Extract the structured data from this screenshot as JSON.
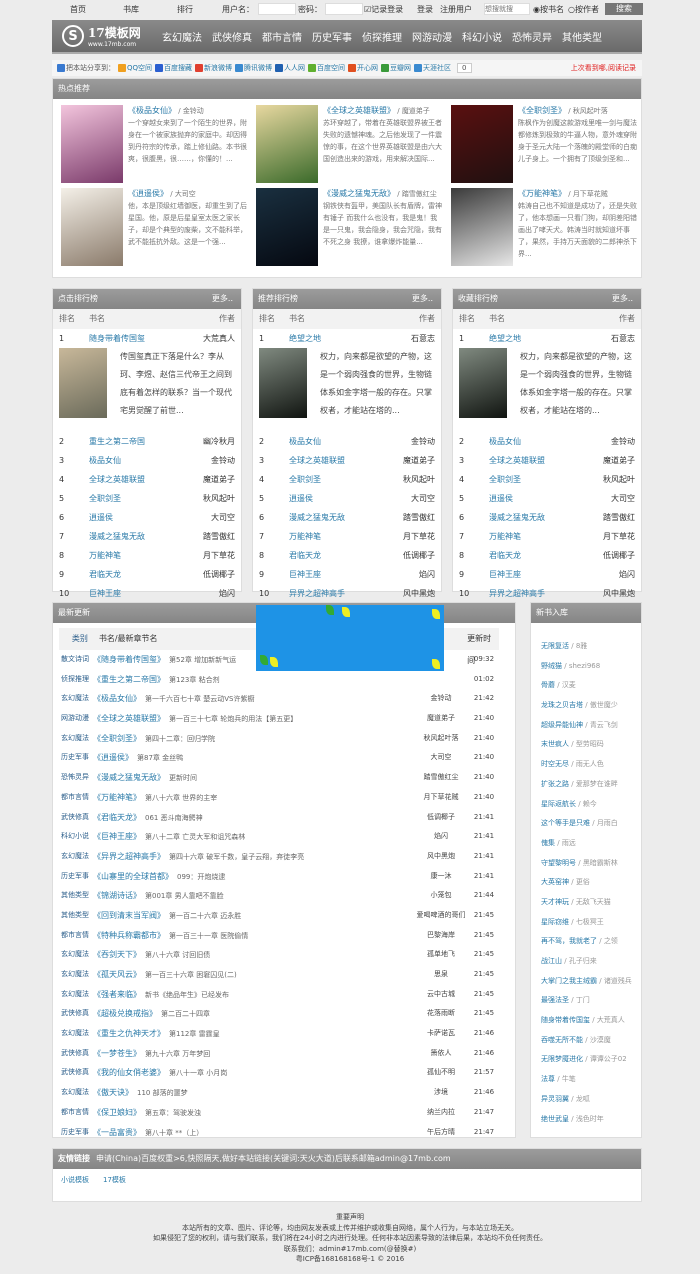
{
  "topbar": {
    "home": "首页",
    "library": "书库",
    "rank": "排行",
    "username_label": "用户名：",
    "password_label": "密码：",
    "remember": "记录登录",
    "login": "登录",
    "register": "注册用户",
    "search_placeholder": "想搜就搜",
    "by_name": "按书名",
    "by_author": "按作者",
    "search": "搜索"
  },
  "header": {
    "logo_name": "17模板网",
    "logo_url": "www.17mb.com",
    "nav": [
      "玄幻魔法",
      "武侠修真",
      "都市言情",
      "历史军事",
      "侦探推理",
      "网游动漫",
      "科幻小说",
      "恐怖灵异",
      "其他类型"
    ]
  },
  "share": {
    "label": "把本站分享到：",
    "sites": [
      {
        "name": "QQ空间",
        "color": "#f0a020"
      },
      {
        "name": "百度搜藏",
        "color": "#2b5fd0"
      },
      {
        "name": "新浪微博",
        "color": "#e04030"
      },
      {
        "name": "腾讯微博",
        "color": "#3a8ad0"
      },
      {
        "name": "人人网",
        "color": "#2060b0"
      },
      {
        "name": "百度空间",
        "color": "#60b030"
      },
      {
        "name": "开心网",
        "color": "#e05020"
      },
      {
        "name": "豆瓣网",
        "color": "#3a9a3a"
      },
      {
        "name": "天涯社区",
        "color": "#3a8ad0"
      }
    ],
    "count": "0",
    "history": "上次看到哪,阅读记录"
  },
  "hot": {
    "title": "热点推荐",
    "items": [
      {
        "title": "《极品女仙》",
        "author": "金铃动",
        "desc": "一个穿越女来到了一个陌生的世界，附身在一个被家族抛弃的家庭中。却因得到丹符宗的传承，踏上修仙路。本书很爽，很腹黑，很……，你懂的！...",
        "cover": [
          "#f3c5dd",
          "#7a3a6a"
        ]
      },
      {
        "title": "《全球之英雄联盟》",
        "author": "魔道弟子",
        "desc": "苏环穿越了，带着在英雄联盟界被王者失败的遗憾神魂。之后他发现了一件震惊的事，在这个世界英雄联盟是由六大国创造出来的游戏，用来解决国际...",
        "cover": [
          "#e8d8a0",
          "#3a6a2a"
        ]
      },
      {
        "title": "《全职剑圣》",
        "author": "秋风起叶落",
        "desc": "陈枫作为创魔这款游戏里唯一剑与魔法都修炼到极致的牛逼人物，意外魂穿附身于圣元大陆一个落魄的殿堂师的白痴儿子身上。一个拥有了顶级剑圣和...",
        "cover": [
          "#5a1010",
          "#201010"
        ]
      },
      {
        "title": "《逍遥侯》",
        "author": "大司空",
        "desc": "他，本是顶级红墙御医，却重生到了后星国。他，原是后星皇室太医之家长子，却是个典型的废柴，文不能科举，武不能抵抗外敌。这是一个强...",
        "cover": [
          "#f4f0e8",
          "#8a7a6a"
        ]
      },
      {
        "title": "《漫威之猛鬼无敌》",
        "author": "踏雪傲红尘",
        "desc": "钢铁侠有盔甲，美国队长有盾牌，雷神有锤子 而我什么也没有，我是鬼！我是一只鬼，我会隐身，我会咒隐，我有不死之身 我撩，谁拿爆炸能量...",
        "cover": [
          "#1a3040",
          "#050810"
        ]
      },
      {
        "title": "《万能神笔》",
        "author": "月下草花贼",
        "desc": "韩涛自己也不知道是成功了，还是失败了，他本想画一只看门狗，却阴差阳错画出了哮天犬。韩涛当时就知道坏事了，果然，手持万天面貌的二郎神杀下界...",
        "cover": [
          "#3a3a3a",
          "#e8e8e8"
        ]
      }
    ]
  },
  "rankings": [
    {
      "title": "点击排行榜",
      "more": "更多..",
      "headers": [
        "排名",
        "书名",
        "作者"
      ],
      "top_desc": "传国玺真正下落是什么？李从珂、李煜、赵信三代帝王之间到底有着怎样的联系？当一个现代宅男觉醒了前世...",
      "top_cover": [
        "#c8b89a",
        "#6a6a5a"
      ],
      "rows": [
        [
          "1",
          "随身带着传国玺",
          "大荒真人"
        ],
        [
          "2",
          "重生之第二帝国",
          "幽冷秋月"
        ],
        [
          "3",
          "极品女仙",
          "金铃动"
        ],
        [
          "4",
          "全球之英雄联盟",
          "魔道弟子"
        ],
        [
          "5",
          "全职剑圣",
          "秋风起叶"
        ],
        [
          "6",
          "逍遥侯",
          "大司空"
        ],
        [
          "7",
          "漫威之猛鬼无敌",
          "踏雪傲红"
        ],
        [
          "8",
          "万能神笔",
          "月下草花"
        ],
        [
          "9",
          "君临天龙",
          "低调椰子"
        ],
        [
          "10",
          "巨神王座",
          "焰闪"
        ]
      ]
    },
    {
      "title": "推荐排行榜",
      "more": "更多..",
      "headers": [
        "排名",
        "书名",
        "作者"
      ],
      "top_desc": "权力，向来都是欲望的产物，这是一个弱肉强食的世界，生物链体系如金字塔一般的存在。只掌权者，才能站在塔的...",
      "top_cover": [
        "#808a80",
        "#101410"
      ],
      "rows": [
        [
          "1",
          "绝望之地",
          "石意志"
        ],
        [
          "2",
          "极品女仙",
          "金铃动"
        ],
        [
          "3",
          "全球之英雄联盟",
          "魔道弟子"
        ],
        [
          "4",
          "全职剑圣",
          "秋风起叶"
        ],
        [
          "5",
          "逍遥侯",
          "大司空"
        ],
        [
          "6",
          "漫威之猛鬼无敌",
          "踏雪傲红"
        ],
        [
          "7",
          "万能神笔",
          "月下草花"
        ],
        [
          "8",
          "君临天龙",
          "低调椰子"
        ],
        [
          "9",
          "巨神王座",
          "焰闪"
        ],
        [
          "10",
          "异界之超神高手",
          "风中黑炮"
        ]
      ]
    },
    {
      "title": "收藏排行榜",
      "more": "更多..",
      "headers": [
        "排名",
        "书名",
        "作者"
      ],
      "top_desc": "权力，向来都是欲望的产物，这是一个弱肉强食的世界，生物链体系如金字塔一般的存在。只掌权者，才能站在塔的...",
      "top_cover": [
        "#808a80",
        "#101410"
      ],
      "rows": [
        [
          "1",
          "绝望之地",
          "石意志"
        ],
        [
          "2",
          "极品女仙",
          "金铃动"
        ],
        [
          "3",
          "全球之英雄联盟",
          "魔道弟子"
        ],
        [
          "4",
          "全职剑圣",
          "秋风起叶"
        ],
        [
          "5",
          "逍遥侯",
          "大司空"
        ],
        [
          "6",
          "漫威之猛鬼无敌",
          "踏雪傲红"
        ],
        [
          "7",
          "万能神笔",
          "月下草花"
        ],
        [
          "8",
          "君临天龙",
          "低调椰子"
        ],
        [
          "9",
          "巨神王座",
          "焰闪"
        ],
        [
          "10",
          "异界之超神高手",
          "风中黑炮"
        ]
      ]
    }
  ],
  "updates": {
    "title": "最新更新",
    "headers": [
      "类别",
      "书名/最新章节名",
      "更新时间"
    ],
    "rows": [
      [
        "散文诗词",
        "《随身带着传国玺》",
        "第52章 增加新新气运",
        "",
        "09:32"
      ],
      [
        "侦探推理",
        "《重生之第二帝国》",
        "第123章 粘合剂",
        "",
        "01:02"
      ],
      [
        "玄幻魔法",
        "《极品女仙》",
        "第一千六百七十章 楚云动VS许紫橱",
        "金铃动",
        "21:42"
      ],
      [
        "网游动漫",
        "《全球之英雄联盟》",
        "第一百三十七章 轮炮兵的用法【第五更】",
        "魔道弟子",
        "21:40"
      ],
      [
        "玄幻魔法",
        "《全职剑圣》",
        "第四十二章：回归学院",
        "秋风起叶落",
        "21:40"
      ],
      [
        "历史军事",
        "《逍遥侯》",
        "第87章 金丝鸭",
        "大司空",
        "21:40"
      ],
      [
        "恐怖灵异",
        "《漫威之猛鬼无敌》",
        "更新时间",
        "踏雪傲红尘",
        "21:40"
      ],
      [
        "都市言情",
        "《万能神笔》",
        "第八十六章 世界的主宰",
        "月下草花贼",
        "21:40"
      ],
      [
        "武侠修真",
        "《君临天龙》",
        "061 恶斗南海鳄神",
        "低调椰子",
        "21:41"
      ],
      [
        "科幻小说",
        "《巨神王座》",
        "第八十二章 亡灵大军和诅咒森林",
        "焰闪",
        "21:41"
      ],
      [
        "玄幻魔法",
        "《异界之超神高手》",
        "第四十六章 破军千数，皇子云翔，弃徒李亮",
        "风中黑炮",
        "21:41"
      ],
      [
        "历史军事",
        "《山寨里的全球首都》",
        "099：开炮烧逮",
        "康一沐",
        "21:41"
      ],
      [
        "其他类型",
        "《锦湖诗话》",
        "第001章 男人靠吧不靠脸",
        "小笼包",
        "21:44"
      ],
      [
        "其他类型",
        "《回到清末当军阀》",
        "第一百二十六章 迈永胜",
        "爱喝啤酒的哥们",
        "21:45"
      ],
      [
        "都市言情",
        "《特种兵称霸都市》",
        "第一百三十一章 医院偷情",
        "巴黎海岸",
        "21:45"
      ],
      [
        "玄幻魔法",
        "《吞剑天下》",
        "第八十六章 讨回旧债",
        "孤单地飞",
        "21:45"
      ],
      [
        "玄幻魔法",
        "《孤天风云》",
        "第一百三十六章 困窘囚见(二)",
        "思泉",
        "21:45"
      ],
      [
        "玄幻魔法",
        "《强者来临》",
        "新书《绝品年生》已经发布",
        "云中古城",
        "21:45"
      ],
      [
        "武侠修真",
        "《超极兑换戒指》",
        "第二百二十四章",
        "花落雨断",
        "21:45"
      ],
      [
        "玄幻魔法",
        "《重生之仇神天才》",
        "第112章 雷霆皇",
        "卡萨诺瓦",
        "21:46"
      ],
      [
        "武侠修真",
        "《一梦苍生》",
        "第九十六章 万年梦回",
        "箫依人",
        "21:46"
      ],
      [
        "武侠修真",
        "《我的仙女俏老婆》",
        "第八十一章 小月岗",
        "孤仙不明",
        "21:57"
      ],
      [
        "玄幻魔法",
        "《傲天诀》",
        "110 部落的噩梦",
        "涉境",
        "21:46"
      ],
      [
        "都市言情",
        "《保卫娘妇》",
        "第五章：驾驶发浊",
        "纳兰内拉",
        "21:47"
      ],
      [
        "历史军事",
        "《一品富贵》",
        "第八十章 **（上）",
        "午后方晴",
        "21:47"
      ]
    ]
  },
  "new_books": {
    "title": "新书入库",
    "items": [
      [
        "无限复活",
        "8雅"
      ],
      [
        "野绒猫",
        "shezi968"
      ],
      [
        "骨蘑",
        "汉麦"
      ],
      [
        "龙珠之贝吉塔",
        "傲世魔少"
      ],
      [
        "超级异能仙神",
        "青云飞剑"
      ],
      [
        "末世疯人",
        "型劳昭码"
      ],
      [
        "时空无尽",
        "雨无人色"
      ],
      [
        "扩张之路",
        "爱那梦在谁畔"
      ],
      [
        "星际返航长",
        "赖今"
      ],
      [
        "这个等手是只难",
        "月雨白"
      ],
      [
        "傀集",
        "雨远"
      ],
      [
        "守望黎明号",
        "黑暗霸斯林"
      ],
      [
        "大英窑神",
        "更俗"
      ],
      [
        "天才神玩",
        "无敌飞天猫"
      ],
      [
        "星际窃维",
        "七极冥王"
      ],
      [
        "再不驾，我就老了",
        "之领"
      ],
      [
        "战江山",
        "孔子归来"
      ],
      [
        "大掌门之我主绒霸",
        "诸道残兵"
      ],
      [
        "最强法圣",
        "丁门"
      ],
      [
        "随身带着传国玺",
        "大荒真人"
      ],
      [
        "吞噬无所不能",
        "沙漠魔"
      ],
      [
        "无限梦魇进化",
        "谭谭公子02"
      ],
      [
        "法尊",
        "牛笔"
      ],
      [
        "异灵羽翼",
        "龙呱"
      ],
      [
        "绝世武皇",
        "浅色时年"
      ]
    ]
  },
  "links": {
    "title": "友情链接",
    "note": "申请(China)百度权重>6,快照隔天,做好本站链接(关键词:天火大道)后联系邮箱admin@17mb.com",
    "items": [
      "小说模板",
      "17模板"
    ]
  },
  "footer": {
    "lines": [
      "重要声明",
      "本站所有的文章、图片、评论等，均由网友发表或上传并维护或收集自网络，属个人行为，与本站立场无关。",
      "如果侵犯了您的权利，请与我们联系，我们将在24小时之内进行处理。任何非本站因素导致的法律后果，本站均不负任何责任。",
      "联系我们：admin#17mb.com(@替换#)",
      "粤ICP备168168168号-1 © 2016"
    ]
  }
}
